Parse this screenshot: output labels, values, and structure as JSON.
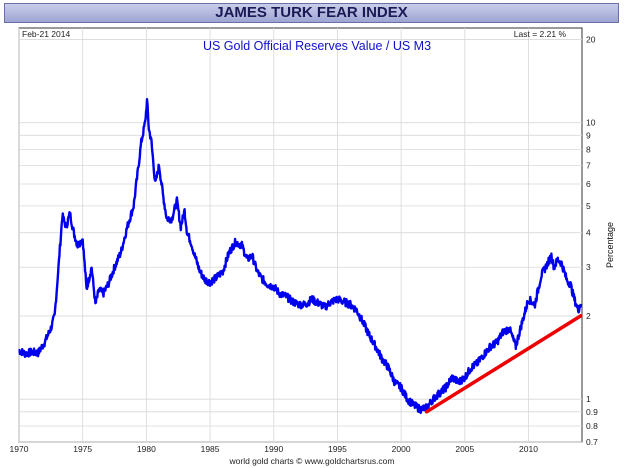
{
  "banner": {
    "title": "JAMES TURK FEAR INDEX"
  },
  "chart_data": {
    "type": "line",
    "title": "US Gold Official Reserves Value / US M3",
    "date_label": "Feb-21 2014",
    "last_label": "Last = 2.21 %",
    "ylabel": "Percentage",
    "credit": "world gold charts © www.goldchartsrus.com",
    "y_scale": "log",
    "ylim": [
      0.7,
      22
    ],
    "xlim": [
      1970,
      2014.2
    ],
    "grid": true,
    "x_ticks": [
      "1970",
      "1975",
      "1980",
      "1985",
      "1990",
      "1995",
      "2000",
      "2005",
      "2010"
    ],
    "x_tick_values": [
      1970,
      1975,
      1980,
      1985,
      1990,
      1995,
      2000,
      2005,
      2010
    ],
    "y_ticks": [
      "0.7",
      "0.8",
      "0.9",
      "1",
      "2",
      "3",
      "4",
      "5",
      "6",
      "7",
      "8",
      "9",
      "10",
      "20"
    ],
    "y_tick_values": [
      0.7,
      0.8,
      0.9,
      1,
      2,
      3,
      4,
      5,
      6,
      7,
      8,
      9,
      10,
      20
    ],
    "line_color": "#0000ee",
    "trend_color": "#ee0000",
    "series": [
      {
        "x": [
          1970.0,
          1970.5,
          1971.0,
          1971.5,
          1972.0,
          1972.5,
          1972.8,
          1973.1,
          1973.4,
          1973.7,
          1974.0,
          1974.3,
          1974.6,
          1975.0,
          1975.3,
          1975.7,
          1976.0,
          1976.3,
          1976.6,
          1977.0,
          1977.5,
          1978.0,
          1978.5,
          1979.0,
          1979.3,
          1979.6,
          1979.9,
          1980.05,
          1980.2,
          1980.4,
          1980.7,
          1981.0,
          1981.3,
          1981.6,
          1982.0,
          1982.4,
          1982.7,
          1983.0,
          1983.2,
          1983.5,
          1983.8,
          1984.2,
          1984.6,
          1985.0,
          1985.5,
          1986.0,
          1986.5,
          1987.0,
          1987.5,
          1987.9,
          1988.3,
          1988.7,
          1989.0,
          1989.5,
          1990.0,
          1990.5,
          1991.0,
          1991.5,
          1992.0,
          1992.5,
          1993.0,
          1993.3,
          1993.7,
          1994.0,
          1994.5,
          1995.0,
          1995.5,
          1996.0,
          1996.5,
          1997.0,
          1997.5,
          1998.0,
          1998.5,
          1999.0,
          1999.5,
          2000.0,
          2000.5,
          2001.0,
          2001.5,
          2002.0,
          2002.5,
          2003.0,
          2003.5,
          2004.0,
          2004.5,
          2005.0,
          2005.5,
          2006.0,
          2006.5,
          2007.0,
          2007.5,
          2008.0,
          2008.5,
          2009.0,
          2009.5,
          2010.0,
          2010.5,
          2011.0,
          2011.5,
          2011.8,
          2012.0,
          2012.3,
          2012.6,
          2013.0,
          2013.3,
          2013.6,
          2013.9,
          2014.1
        ],
        "values": [
          1.5,
          1.46,
          1.48,
          1.47,
          1.6,
          1.8,
          2.0,
          3.0,
          4.6,
          4.2,
          4.7,
          4.0,
          3.6,
          3.8,
          2.5,
          3.0,
          2.2,
          2.5,
          2.4,
          2.6,
          3.0,
          3.4,
          4.2,
          5.0,
          6.5,
          8.5,
          10.0,
          12.0,
          9.5,
          8.5,
          6.0,
          7.0,
          5.5,
          4.5,
          4.5,
          5.2,
          4.2,
          4.8,
          4.0,
          3.7,
          3.3,
          2.9,
          2.7,
          2.65,
          2.75,
          2.9,
          3.4,
          3.7,
          3.6,
          3.2,
          3.3,
          2.9,
          2.75,
          2.6,
          2.55,
          2.4,
          2.35,
          2.25,
          2.2,
          2.2,
          2.3,
          2.25,
          2.2,
          2.15,
          2.25,
          2.3,
          2.25,
          2.2,
          2.1,
          1.9,
          1.7,
          1.55,
          1.4,
          1.3,
          1.15,
          1.1,
          1.0,
          0.95,
          0.92,
          0.93,
          1.0,
          1.05,
          1.1,
          1.2,
          1.15,
          1.2,
          1.3,
          1.35,
          1.45,
          1.55,
          1.6,
          1.75,
          1.8,
          1.55,
          1.9,
          2.3,
          2.2,
          2.8,
          3.1,
          3.3,
          3.0,
          3.2,
          3.1,
          2.7,
          2.6,
          2.3,
          2.1,
          2.21
        ]
      },
      {
        "x": [
          2002.0,
          2014.1
        ],
        "values": [
          0.9,
          2.0
        ]
      }
    ]
  }
}
